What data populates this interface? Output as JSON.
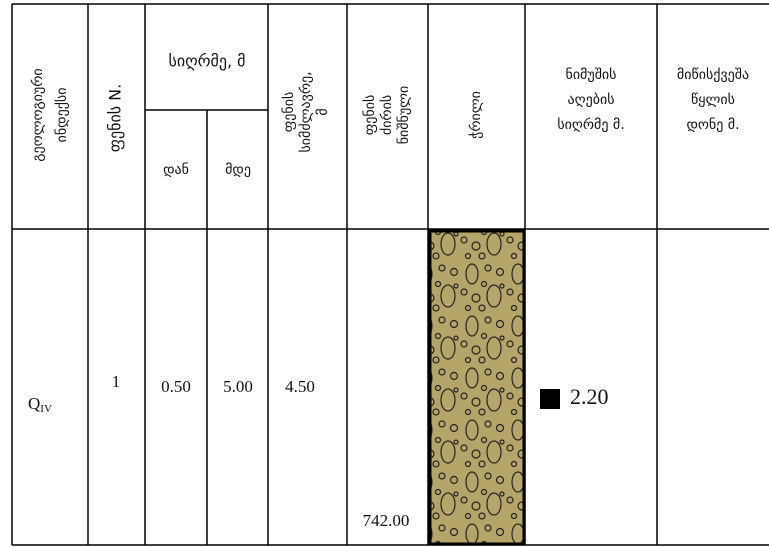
{
  "header": {
    "geological_index": [
      "გეოლოგიური",
      "ინდექსი"
    ],
    "layer_number": [
      "ფენის N."
    ],
    "depth": "სიღრმე, მ",
    "depth_from": "დან",
    "depth_to": "მდე",
    "layer_thickness": [
      "ფენის",
      "სიმძლავრე,",
      "მ"
    ],
    "layer_bottom_mark": [
      "ფენის",
      "ძირის",
      "ნიშნული"
    ],
    "section": [
      "ჭრილი"
    ],
    "sample_depth": [
      "ნიმუშის",
      "აღების",
      "სიღრმე მ."
    ],
    "groundwater_level": [
      "მიწისქვეშა",
      "წყლის",
      "დონე მ."
    ]
  },
  "rows": [
    {
      "geological_index": {
        "symbol": "Q",
        "subscript": "IV"
      },
      "layer_number": "1",
      "depth_from": "0.50",
      "depth_to": "5.00",
      "layer_thickness": "4.50",
      "layer_bottom_mark": "742.00",
      "sample_depth": "2.20"
    }
  ]
}
